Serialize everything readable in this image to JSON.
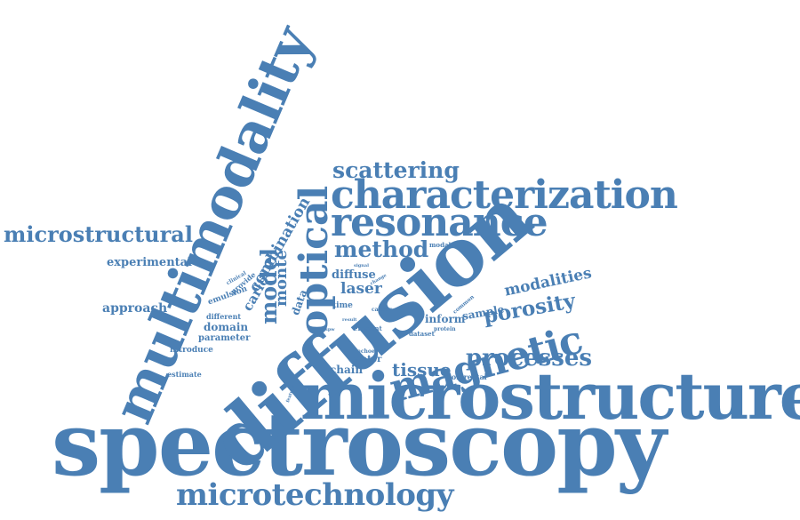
{
  "color": "#4a7fb4",
  "words": [
    "spectroscopy",
    "microstructure",
    "diffusion",
    "multimodality",
    "characterization",
    "resonance",
    "microtechnology",
    "optical",
    "magnetic",
    "microstructural",
    "scattering",
    "processes",
    "method",
    "model",
    "porosity",
    "modalities",
    "laser",
    "tissue",
    "monte",
    "carlo",
    "combination",
    "experimental",
    "approach",
    "domain",
    "diffuse",
    "parameter",
    "sample",
    "inform",
    "data",
    "chain",
    "water",
    "introduce",
    "time",
    "different",
    "emulsion",
    "provide",
    "estimate",
    "clinical",
    "signal",
    "modality",
    "change",
    "cancer",
    "common",
    "element",
    "protein",
    "dataset",
    "echoes",
    "colorectal",
    "feature",
    "result",
    "spw"
  ]
}
